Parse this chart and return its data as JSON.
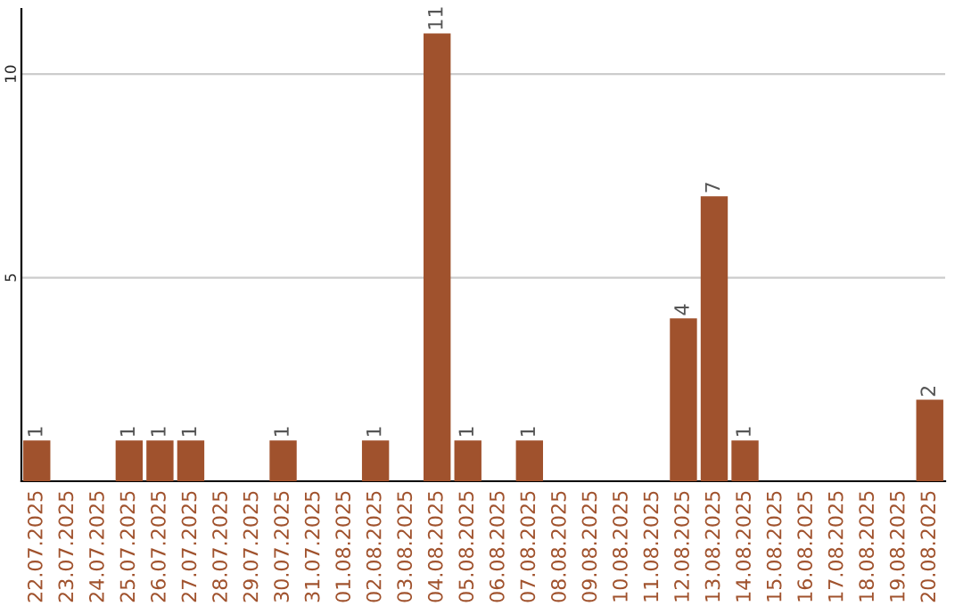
{
  "chart_data": {
    "type": "bar",
    "categories": [
      "22.07.2025",
      "23.07.2025",
      "24.07.2025",
      "25.07.2025",
      "26.07.2025",
      "27.07.2025",
      "28.07.2025",
      "29.07.2025",
      "30.07.2025",
      "31.07.2025",
      "01.08.2025",
      "02.08.2025",
      "03.08.2025",
      "04.08.2025",
      "05.08.2025",
      "06.08.2025",
      "07.08.2025",
      "08.08.2025",
      "09.08.2025",
      "10.08.2025",
      "11.08.2025",
      "12.08.2025",
      "13.08.2025",
      "14.08.2025",
      "15.08.2025",
      "16.08.2025",
      "17.08.2025",
      "18.08.2025",
      "19.08.2025",
      "20.08.2025"
    ],
    "values": [
      1,
      0,
      0,
      1,
      1,
      1,
      0,
      0,
      1,
      0,
      0,
      1,
      0,
      11,
      1,
      0,
      1,
      0,
      0,
      0,
      0,
      4,
      7,
      1,
      0,
      0,
      0,
      0,
      0,
      2
    ],
    "value_labels": [
      "1",
      null,
      null,
      "1",
      "1",
      "1",
      null,
      null,
      "1",
      null,
      null,
      "1",
      null,
      "11",
      "1",
      null,
      "1",
      null,
      null,
      null,
      null,
      "4",
      "7",
      "1",
      null,
      null,
      null,
      null,
      null,
      "2"
    ],
    "color": "#a0522d",
    "ylim": [
      0,
      11.6
    ],
    "yticks": [
      5,
      10
    ],
    "grid": "y"
  }
}
